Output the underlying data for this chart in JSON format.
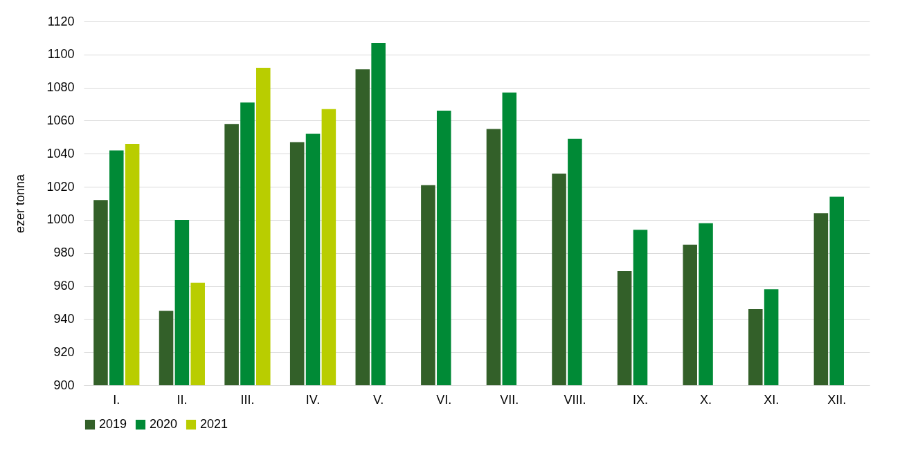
{
  "chart_data": {
    "type": "bar",
    "ylabel": "ezer tonna",
    "categories": [
      "I.",
      "II.",
      "III.",
      "IV.",
      "V.",
      "VI.",
      "VII.",
      "VIII.",
      "IX.",
      "X.",
      "XI.",
      "XII."
    ],
    "series": [
      {
        "name": "2019",
        "color": "#336029",
        "values": [
          1012,
          945,
          1058,
          1047,
          1091,
          1021,
          1055,
          1028,
          969,
          985,
          946,
          1004
        ]
      },
      {
        "name": "2020",
        "color": "#008a36",
        "values": [
          1042,
          1000,
          1071,
          1052,
          1107,
          1066,
          1077,
          1049,
          994,
          998,
          958,
          1014
        ]
      },
      {
        "name": "2021",
        "color": "#b9cd00",
        "values": [
          1046,
          962,
          1092,
          1067,
          null,
          null,
          null,
          null,
          null,
          null,
          null,
          null
        ]
      }
    ],
    "ylim": [
      900,
      1120
    ],
    "yticks": [
      900,
      920,
      940,
      960,
      980,
      1000,
      1020,
      1040,
      1060,
      1080,
      1100,
      1120
    ],
    "grid": "y",
    "legend": "bottom"
  }
}
